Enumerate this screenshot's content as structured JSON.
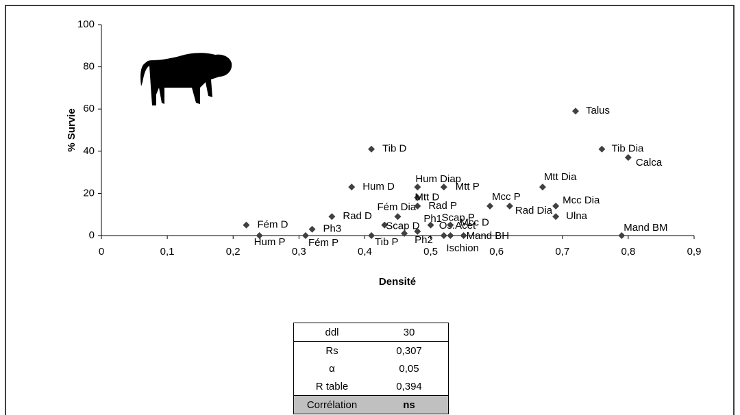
{
  "chart_data": {
    "type": "scatter",
    "xlabel": "Densité",
    "ylabel": "% Survie",
    "color": "#404040",
    "xlim": [
      0,
      0.9
    ],
    "ylim": [
      0,
      100
    ],
    "xticks": [
      0,
      {
        "value": 0.1,
        "label": "0,1"
      },
      {
        "value": 0.2,
        "label": "0,2"
      },
      {
        "value": 0.3,
        "label": "0,3"
      },
      {
        "value": 0.4,
        "label": "0,4"
      },
      {
        "value": 0.5,
        "label": "0,5"
      },
      {
        "value": 0.6,
        "label": "0,6"
      },
      {
        "value": 0.7,
        "label": "0,7"
      },
      {
        "value": 0.8,
        "label": "0,8"
      },
      {
        "value": 0.9,
        "label": "0,9"
      }
    ],
    "yticks": [
      0,
      20,
      40,
      60,
      80,
      100
    ],
    "point_labels": [
      "Fém D",
      "Hum P",
      "Ph3",
      "Fém P",
      "Rad D",
      "Hum D",
      "Tib D",
      "Tib P",
      "Scap D",
      "Fém Dia",
      "Ph2",
      "Hum Diap",
      "Mtt D",
      "Rad P",
      "Ph1",
      "Scap P",
      "Mtt P",
      "Os.Acet",
      "Ischion",
      "Mand BH",
      "Mcc D",
      "Mcc P",
      "Rad Dia",
      "Mtt Dia",
      "Ulna",
      "Mcc Dia",
      "Talus",
      "Tib Dia",
      "Calca",
      "Mand BM"
    ],
    "x": [
      0.22,
      0.24,
      0.32,
      0.31,
      0.35,
      0.38,
      0.41,
      0.41,
      0.43,
      0.45,
      0.46,
      0.48,
      0.48,
      0.48,
      0.48,
      0.5,
      0.52,
      0.52,
      0.53,
      0.55,
      0.53,
      0.59,
      0.62,
      0.67,
      0.69,
      0.69,
      0.72,
      0.76,
      0.8,
      0.79
    ],
    "values": [
      5,
      0,
      3,
      0,
      9,
      23,
      41,
      0,
      5,
      9,
      1,
      23,
      18,
      14,
      2,
      5,
      23,
      0,
      0,
      0,
      5,
      14,
      14,
      23,
      9,
      14,
      59,
      41,
      37,
      0
    ]
  },
  "table": {
    "rows": [
      [
        "ddl",
        "30"
      ],
      [
        "Rs",
        "0,307"
      ],
      [
        "α",
        "0,05"
      ],
      [
        "R table",
        "0,394"
      ],
      [
        "Corrélation",
        "ns"
      ]
    ]
  }
}
